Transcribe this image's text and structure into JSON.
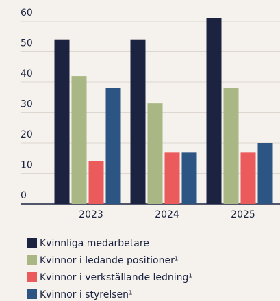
{
  "chart_data": {
    "type": "bar",
    "categories": [
      "2023",
      "2024",
      "2025"
    ],
    "series": [
      {
        "name": "Kvinnliga medarbetare",
        "color": "#1b2340",
        "values": [
          54,
          54,
          61
        ]
      },
      {
        "name": "Kvinnor i ledande positioner¹",
        "color": "#a9b784",
        "values": [
          42,
          33,
          38
        ]
      },
      {
        "name": "Kvinnor i verkställande ledning¹",
        "color": "#ec5b5b",
        "values": [
          14,
          17,
          17
        ]
      },
      {
        "name": "Kvinnor i styrelsen¹",
        "color": "#2c5583",
        "values": [
          38,
          17,
          20
        ]
      }
    ],
    "ylim": [
      0,
      60
    ],
    "yticks": [
      0,
      10,
      20,
      30,
      40,
      50,
      60
    ],
    "grid": true
  }
}
